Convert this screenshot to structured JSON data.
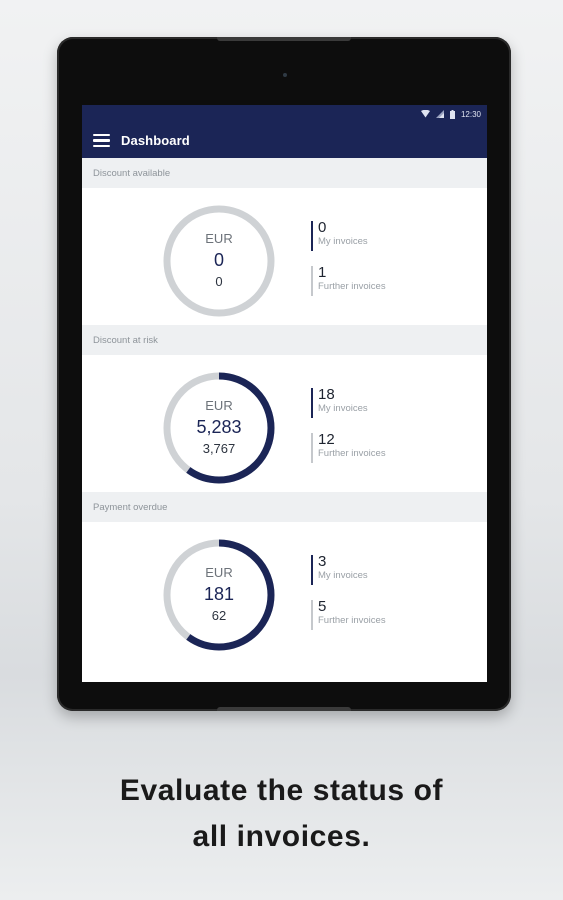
{
  "status_bar": {
    "time": "12:30"
  },
  "app_bar": {
    "title": "Dashboard"
  },
  "sections": [
    {
      "header": "Discount available",
      "gauge": {
        "currency": "EUR",
        "amount": "0",
        "sub": "0",
        "fill_fraction": 0.0
      },
      "stats": [
        {
          "value": "0",
          "label": "My invoices"
        },
        {
          "value": "1",
          "label": "Further invoices"
        }
      ]
    },
    {
      "header": "Discount at risk",
      "gauge": {
        "currency": "EUR",
        "amount": "5,283",
        "sub": "3,767",
        "fill_fraction": 0.6
      },
      "stats": [
        {
          "value": "18",
          "label": "My invoices"
        },
        {
          "value": "12",
          "label": "Further invoices"
        }
      ]
    },
    {
      "header": "Payment overdue",
      "gauge": {
        "currency": "EUR",
        "amount": "181",
        "sub": "62",
        "fill_fraction": 0.6
      },
      "stats": [
        {
          "value": "3",
          "label": "My invoices"
        },
        {
          "value": "5",
          "label": "Further invoices"
        }
      ]
    }
  ],
  "caption": {
    "line1": "Evaluate the status of",
    "line2": "all invoices."
  },
  "colors": {
    "primary": "#1b2556",
    "ring_track": "#cfd2d5",
    "section_bg": "#eef0f2"
  }
}
